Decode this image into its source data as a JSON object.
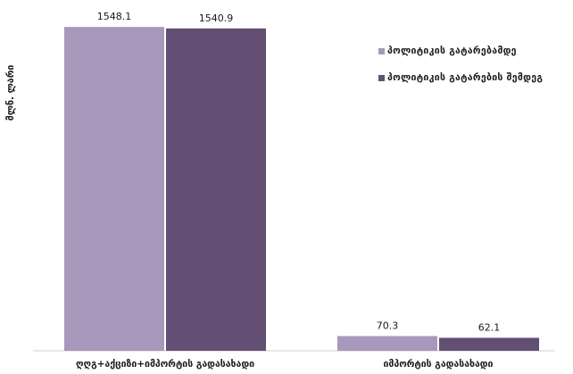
{
  "chart_data": {
    "type": "bar",
    "ylabel": "მლნ. ლარი",
    "categories": [
      "ღღგ+აქციზი+იმპორტის გადასახადი",
      "იმპორტის გადასახადი"
    ],
    "series": [
      {
        "name": "პოლიტიკის გატარებამდე",
        "values": [
          1548.1,
          70.3
        ],
        "color": "#a898bb"
      },
      {
        "name": "პოლიტიკის გატარების შემდეგ",
        "values": [
          1540.9,
          62.1
        ],
        "color": "#634f73"
      }
    ],
    "value_labels": [
      [
        "1548.1",
        "70.3"
      ],
      [
        "1540.9",
        "62.1"
      ]
    ],
    "ylim": [
      0,
      1600
    ],
    "grid": false,
    "legend_position": "top-right"
  }
}
